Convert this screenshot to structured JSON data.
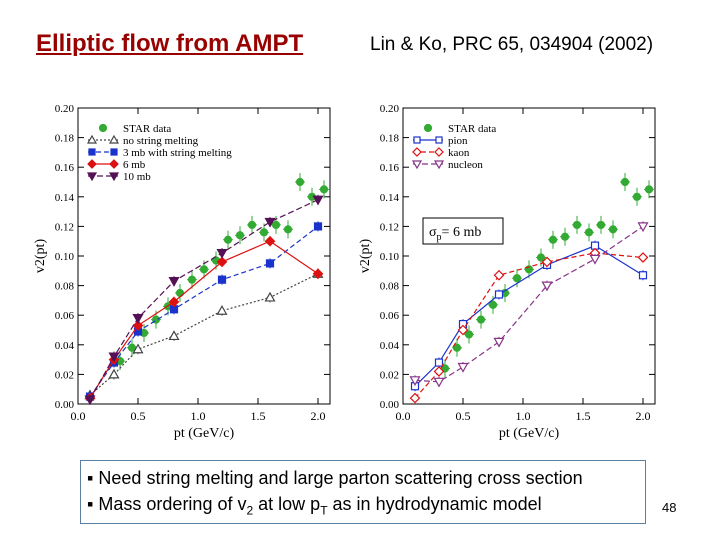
{
  "slide": {
    "title": "Elliptic flow from AMPT",
    "reference": "Lin & Ko, PRC 65, 034904 (2002)",
    "page_number": "48",
    "bullets": [
      {
        "marker": "▪",
        "text": "Need string melting and large parton scattering cross section"
      },
      {
        "marker": "▪",
        "text_before": "Mass ordering of v",
        "sub1": "2",
        "text_middle": " at low p",
        "sub2": "T",
        "text_after": " as in hydrodynamic model"
      }
    ],
    "colors": {
      "title": "#990000",
      "box_border": "#5b7fa0"
    }
  },
  "chart_data": [
    {
      "type": "line",
      "ylabel": "v2(pt)",
      "xlabel": "pt (GeV/c)",
      "xlim": [
        0,
        2.1
      ],
      "ylim": [
        0,
        0.2
      ],
      "x_ticks": [
        "0.0",
        "0.5",
        "1.0",
        "1.5",
        "2.0"
      ],
      "y_ticks": [
        "0.00",
        "0.02",
        "0.04",
        "0.06",
        "0.08",
        "0.10",
        "0.12",
        "0.14",
        "0.16",
        "0.18",
        "0.20"
      ],
      "legend_position": "top-left",
      "series": [
        {
          "name": "STAR data",
          "style": "scatter",
          "marker": "circle",
          "color": "#33aa33",
          "x": [
            0.35,
            0.45,
            0.55,
            0.65,
            0.75,
            0.85,
            0.95,
            1.05,
            1.15,
            1.25,
            1.35,
            1.45,
            1.55,
            1.65,
            1.75,
            1.85,
            1.95,
            2.05
          ],
          "y": [
            0.029,
            0.038,
            0.048,
            0.057,
            0.066,
            0.075,
            0.084,
            0.091,
            0.097,
            0.111,
            0.114,
            0.121,
            0.116,
            0.121,
            0.118,
            0.15,
            0.14,
            0.145
          ]
        },
        {
          "name": "no string melting",
          "marker": "triangle-up-open",
          "color": "#444444",
          "dash": "2,2",
          "x": [
            0.1,
            0.3,
            0.5,
            0.8,
            1.2,
            1.6,
            2.0
          ],
          "y": [
            0.006,
            0.02,
            0.037,
            0.046,
            0.063,
            0.072,
            0.088
          ]
        },
        {
          "name": "3 mb with string melting",
          "marker": "square",
          "color": "#1a33cc",
          "dash": "5,3",
          "x": [
            0.1,
            0.3,
            0.5,
            0.8,
            1.2,
            1.6,
            2.0
          ],
          "y": [
            0.005,
            0.028,
            0.049,
            0.064,
            0.084,
            0.095,
            0.12
          ]
        },
        {
          "name": "6 mb",
          "marker": "diamond",
          "color": "#dd1111",
          "dash": "",
          "x": [
            0.1,
            0.3,
            0.5,
            0.8,
            1.2,
            1.6,
            2.0
          ],
          "y": [
            0.004,
            0.03,
            0.053,
            0.069,
            0.096,
            0.11,
            0.088
          ]
        },
        {
          "name": "10 mb",
          "marker": "triangle-down",
          "color": "#551155",
          "dash": "6,3",
          "x": [
            0.1,
            0.3,
            0.5,
            0.8,
            1.2,
            1.6,
            2.0
          ],
          "y": [
            0.003,
            0.032,
            0.058,
            0.083,
            0.102,
            0.123,
            0.138
          ]
        }
      ]
    },
    {
      "type": "line",
      "ylabel": "v2(pt)",
      "xlabel": "pt (GeV/c)",
      "xlim": [
        0,
        2.1
      ],
      "ylim": [
        0,
        0.2
      ],
      "x_ticks": [
        "0.0",
        "0.5",
        "1.0",
        "1.5",
        "2.0"
      ],
      "y_ticks": [
        "0.00",
        "0.02",
        "0.04",
        "0.06",
        "0.08",
        "0.10",
        "0.12",
        "0.14",
        "0.16",
        "0.18",
        "0.20"
      ],
      "legend_position": "top-left",
      "annotation": {
        "prefix": "σ",
        "sub": "p",
        "suffix": "= 6 mb"
      },
      "series": [
        {
          "name": "STAR data",
          "style": "scatter",
          "marker": "circle",
          "color": "#33aa33",
          "x": [
            0.35,
            0.45,
            0.55,
            0.65,
            0.75,
            0.85,
            0.95,
            1.05,
            1.15,
            1.25,
            1.35,
            1.45,
            1.55,
            1.65,
            1.75,
            1.85,
            1.95,
            2.05
          ],
          "y": [
            0.024,
            0.038,
            0.047,
            0.057,
            0.067,
            0.075,
            0.085,
            0.091,
            0.099,
            0.111,
            0.113,
            0.121,
            0.116,
            0.121,
            0.118,
            0.15,
            0.14,
            0.145
          ]
        },
        {
          "name": "pion",
          "marker": "square-open",
          "color": "#1a33cc",
          "dash": "",
          "x": [
            0.1,
            0.3,
            0.5,
            0.8,
            1.2,
            1.6,
            2.0
          ],
          "y": [
            0.012,
            0.028,
            0.054,
            0.074,
            0.094,
            0.107,
            0.087
          ]
        },
        {
          "name": "kaon",
          "marker": "diamond-open",
          "color": "#dd1111",
          "dash": "5,3",
          "x": [
            0.1,
            0.3,
            0.5,
            0.8,
            1.2,
            1.6,
            2.0
          ],
          "y": [
            0.004,
            0.022,
            0.05,
            0.087,
            0.096,
            0.102,
            0.099
          ]
        },
        {
          "name": "nucleon",
          "marker": "triangle-down-open",
          "color": "#883388",
          "dash": "6,3",
          "x": [
            0.1,
            0.3,
            0.5,
            0.8,
            1.2,
            1.6,
            2.0
          ],
          "y": [
            0.016,
            0.015,
            0.025,
            0.042,
            0.08,
            0.098,
            0.12
          ]
        }
      ]
    }
  ]
}
